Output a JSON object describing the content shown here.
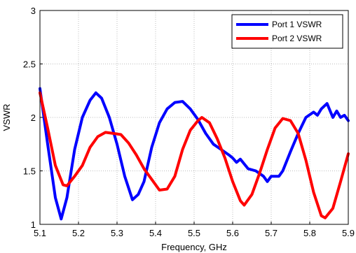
{
  "chart_data": {
    "type": "line",
    "xlabel": "Frequency, GHz",
    "ylabel": "VSWR",
    "xlim": [
      5.1,
      5.9
    ],
    "ylim": [
      1,
      3
    ],
    "x_ticks": [
      "5.1",
      "5.2",
      "5.3",
      "5.4",
      "5.5",
      "5.6",
      "5.7",
      "5.8",
      "5.9"
    ],
    "y_ticks": [
      "1",
      "1.5",
      "2",
      "2.5",
      "3"
    ],
    "grid": true,
    "legend_position": "top-right",
    "series": [
      {
        "name": "Port 1 VSWR",
        "color": "#0000ff",
        "points": [
          [
            5.1,
            2.27
          ],
          [
            5.12,
            1.75
          ],
          [
            5.14,
            1.25
          ],
          [
            5.155,
            1.05
          ],
          [
            5.17,
            1.25
          ],
          [
            5.19,
            1.7
          ],
          [
            5.21,
            2.0
          ],
          [
            5.23,
            2.16
          ],
          [
            5.245,
            2.23
          ],
          [
            5.26,
            2.18
          ],
          [
            5.28,
            2.0
          ],
          [
            5.3,
            1.75
          ],
          [
            5.32,
            1.45
          ],
          [
            5.34,
            1.23
          ],
          [
            5.355,
            1.28
          ],
          [
            5.37,
            1.4
          ],
          [
            5.39,
            1.72
          ],
          [
            5.41,
            1.95
          ],
          [
            5.43,
            2.08
          ],
          [
            5.45,
            2.14
          ],
          [
            5.47,
            2.15
          ],
          [
            5.49,
            2.08
          ],
          [
            5.51,
            1.98
          ],
          [
            5.53,
            1.85
          ],
          [
            5.55,
            1.75
          ],
          [
            5.57,
            1.7
          ],
          [
            5.59,
            1.65
          ],
          [
            5.6,
            1.62
          ],
          [
            5.61,
            1.58
          ],
          [
            5.62,
            1.61
          ],
          [
            5.64,
            1.52
          ],
          [
            5.66,
            1.5
          ],
          [
            5.68,
            1.45
          ],
          [
            5.69,
            1.4
          ],
          [
            5.7,
            1.45
          ],
          [
            5.72,
            1.45
          ],
          [
            5.73,
            1.5
          ],
          [
            5.75,
            1.68
          ],
          [
            5.77,
            1.85
          ],
          [
            5.79,
            2.0
          ],
          [
            5.81,
            2.05
          ],
          [
            5.82,
            2.02
          ],
          [
            5.83,
            2.08
          ],
          [
            5.845,
            2.13
          ],
          [
            5.86,
            2.0
          ],
          [
            5.87,
            2.06
          ],
          [
            5.88,
            2.0
          ],
          [
            5.89,
            2.02
          ],
          [
            5.9,
            1.97
          ]
        ]
      },
      {
        "name": "Port 2 VSWR",
        "color": "#ff0000",
        "points": [
          [
            5.1,
            2.23
          ],
          [
            5.12,
            1.9
          ],
          [
            5.14,
            1.55
          ],
          [
            5.16,
            1.37
          ],
          [
            5.17,
            1.36
          ],
          [
            5.19,
            1.45
          ],
          [
            5.21,
            1.55
          ],
          [
            5.23,
            1.72
          ],
          [
            5.25,
            1.82
          ],
          [
            5.27,
            1.86
          ],
          [
            5.29,
            1.85
          ],
          [
            5.31,
            1.84
          ],
          [
            5.33,
            1.76
          ],
          [
            5.35,
            1.65
          ],
          [
            5.37,
            1.52
          ],
          [
            5.39,
            1.42
          ],
          [
            5.41,
            1.32
          ],
          [
            5.43,
            1.33
          ],
          [
            5.45,
            1.45
          ],
          [
            5.47,
            1.7
          ],
          [
            5.49,
            1.88
          ],
          [
            5.51,
            1.97
          ],
          [
            5.52,
            2.0
          ],
          [
            5.54,
            1.95
          ],
          [
            5.56,
            1.8
          ],
          [
            5.58,
            1.62
          ],
          [
            5.6,
            1.4
          ],
          [
            5.62,
            1.22
          ],
          [
            5.63,
            1.18
          ],
          [
            5.65,
            1.28
          ],
          [
            5.67,
            1.48
          ],
          [
            5.69,
            1.7
          ],
          [
            5.71,
            1.9
          ],
          [
            5.73,
            1.99
          ],
          [
            5.75,
            1.97
          ],
          [
            5.77,
            1.85
          ],
          [
            5.79,
            1.6
          ],
          [
            5.81,
            1.3
          ],
          [
            5.83,
            1.08
          ],
          [
            5.84,
            1.06
          ],
          [
            5.86,
            1.15
          ],
          [
            5.88,
            1.4
          ],
          [
            5.9,
            1.66
          ]
        ]
      }
    ]
  }
}
